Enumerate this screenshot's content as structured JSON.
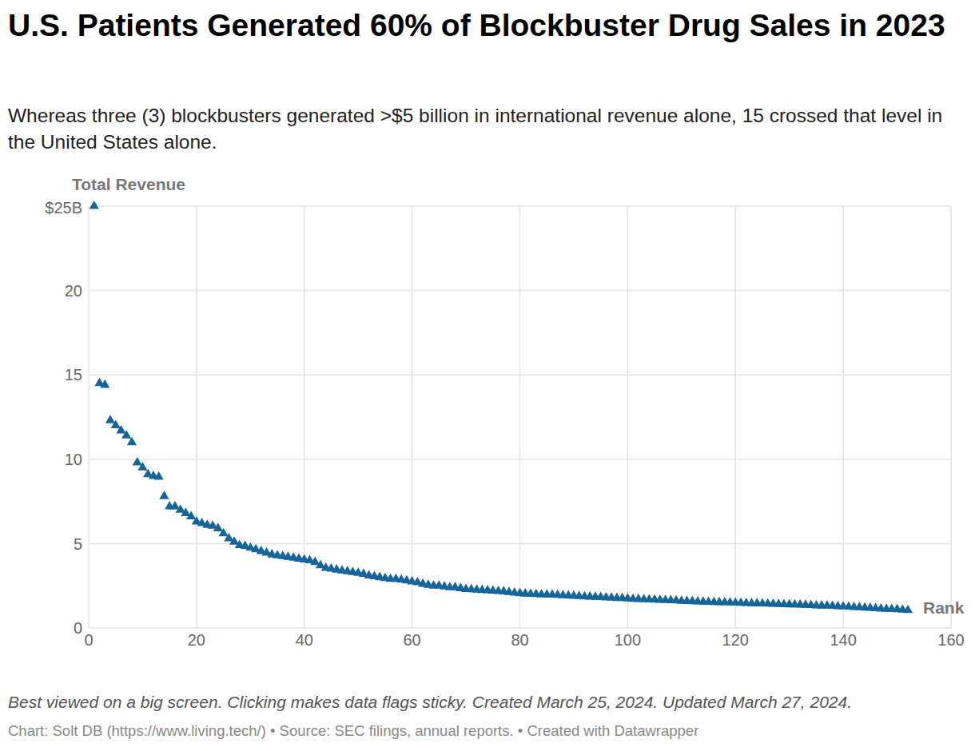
{
  "chart_data": {
    "type": "scatter",
    "title": "U.S. Patients Generated 60% of Blockbuster Drug Sales in 2023",
    "subtitle": "Whereas three (3) blockbusters generated >$5 billion in international revenue alone, 15 crossed that level in the United States alone.",
    "caption": "Best viewed on a big screen. Clicking makes data flags sticky. Created March 25, 2024. Updated March 27, 2024.",
    "source": "Chart: Solt DB (https://www.living.tech/) • Source: SEC filings, annual reports. • Created with Datawrapper",
    "x_label": "Rank",
    "y_label": "Total Revenue",
    "x": [
      1,
      2,
      3,
      4,
      5,
      6,
      7,
      8,
      9,
      10,
      11,
      12,
      13,
      14,
      15,
      16,
      17,
      18,
      19,
      20,
      21,
      22,
      23,
      24,
      25,
      26,
      27,
      28,
      29,
      30,
      31,
      32,
      33,
      34,
      35,
      36,
      37,
      38,
      39,
      40,
      41,
      42,
      43,
      44,
      45,
      46,
      47,
      48,
      49,
      50,
      51,
      52,
      53,
      54,
      55,
      56,
      57,
      58,
      59,
      60,
      61,
      62,
      63,
      64,
      65,
      66,
      67,
      68,
      69,
      70,
      71,
      72,
      73,
      74,
      75,
      76,
      77,
      78,
      79,
      80,
      81,
      82,
      83,
      84,
      85,
      86,
      87,
      88,
      89,
      90,
      91,
      92,
      93,
      94,
      95,
      96,
      97,
      98,
      99,
      100,
      101,
      102,
      103,
      104,
      105,
      106,
      107,
      108,
      109,
      110,
      111,
      112,
      113,
      114,
      115,
      116,
      117,
      118,
      119,
      120,
      121,
      122,
      123,
      124,
      125,
      126,
      127,
      128,
      129,
      130,
      131,
      132,
      133,
      134,
      135,
      136,
      137,
      138,
      139,
      140,
      141,
      142,
      143,
      144,
      145,
      146,
      147,
      148,
      149,
      150,
      151,
      152
    ],
    "values": [
      25.0,
      14.5,
      14.4,
      12.3,
      12.0,
      11.7,
      11.4,
      11.0,
      9.8,
      9.5,
      9.1,
      9.0,
      8.95,
      7.8,
      7.2,
      7.2,
      7.0,
      6.8,
      6.6,
      6.3,
      6.2,
      6.1,
      6.05,
      5.9,
      5.6,
      5.3,
      5.1,
      4.9,
      4.85,
      4.75,
      4.65,
      4.55,
      4.45,
      4.35,
      4.3,
      4.25,
      4.2,
      4.15,
      4.1,
      4.05,
      4.0,
      3.9,
      3.7,
      3.55,
      3.5,
      3.45,
      3.4,
      3.35,
      3.3,
      3.25,
      3.2,
      3.1,
      3.05,
      3.0,
      2.95,
      2.9,
      2.9,
      2.85,
      2.8,
      2.75,
      2.7,
      2.6,
      2.55,
      2.5,
      2.5,
      2.45,
      2.4,
      2.4,
      2.35,
      2.3,
      2.28,
      2.26,
      2.24,
      2.22,
      2.2,
      2.18,
      2.16,
      2.12,
      2.08,
      2.05,
      2.03,
      2.01,
      2.0,
      1.98,
      1.97,
      1.96,
      1.95,
      1.93,
      1.92,
      1.9,
      1.88,
      1.86,
      1.85,
      1.83,
      1.82,
      1.8,
      1.79,
      1.77,
      1.76,
      1.74,
      1.72,
      1.7,
      1.69,
      1.68,
      1.67,
      1.66,
      1.65,
      1.63,
      1.62,
      1.6,
      1.59,
      1.58,
      1.56,
      1.55,
      1.54,
      1.53,
      1.52,
      1.51,
      1.5,
      1.49,
      1.48,
      1.47,
      1.46,
      1.45,
      1.44,
      1.43,
      1.42,
      1.41,
      1.4,
      1.39,
      1.38,
      1.37,
      1.36,
      1.35,
      1.33,
      1.32,
      1.31,
      1.3,
      1.28,
      1.27,
      1.25,
      1.23,
      1.22,
      1.2,
      1.18,
      1.16,
      1.14,
      1.12,
      1.11,
      1.1,
      1.08,
      1.05
    ],
    "color": "#15659a",
    "marker": "triangle",
    "xlim": [
      0,
      160
    ],
    "xticks": [
      0,
      20,
      40,
      60,
      80,
      100,
      120,
      140,
      160
    ],
    "ylim": [
      0,
      25
    ],
    "yticks": [
      0,
      5,
      10,
      15,
      20,
      {
        "value": 25,
        "label": "$25B"
      }
    ],
    "grid": true
  }
}
